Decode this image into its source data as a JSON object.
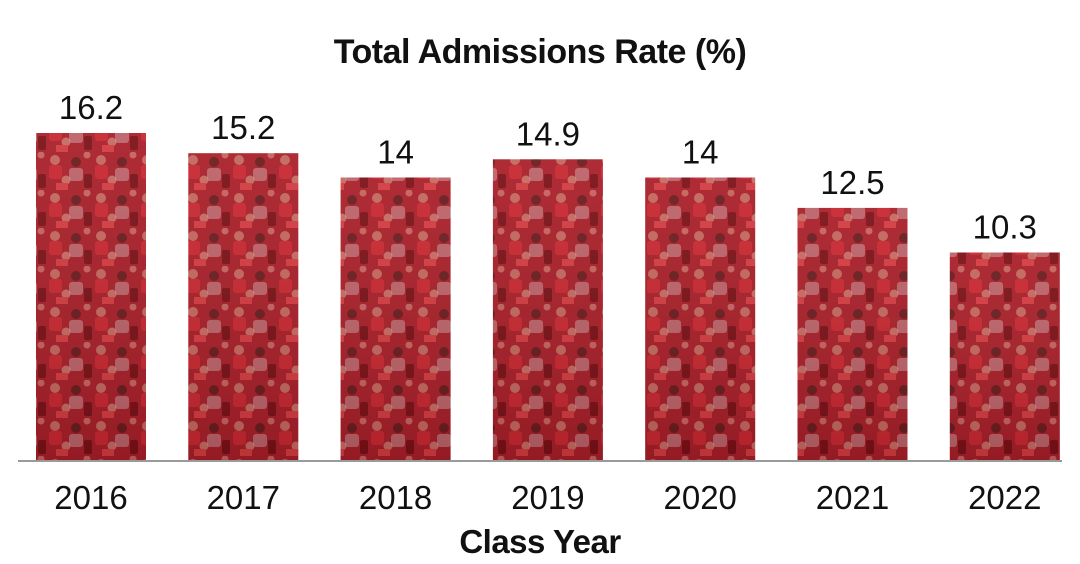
{
  "chart_data": {
    "type": "bar",
    "title": "Total Admissions Rate (%)",
    "xlabel": "Class Year",
    "ylabel": "",
    "categories": [
      "2016",
      "2017",
      "2018",
      "2019",
      "2020",
      "2021",
      "2022"
    ],
    "values": [
      16.2,
      15.2,
      14,
      14.9,
      14,
      12.5,
      10.3
    ],
    "value_labels": [
      "16.2",
      "15.2",
      "14",
      "14.9",
      "14",
      "12.5",
      "10.3"
    ],
    "ylim": [
      0,
      16.2
    ],
    "grid": false,
    "bar_fill": "crowd photo with red overlay",
    "colors": {
      "bar": "#b3232d",
      "bar_dark": "#7e1219",
      "axis": "#9a9a9a",
      "text": "#111111"
    }
  }
}
